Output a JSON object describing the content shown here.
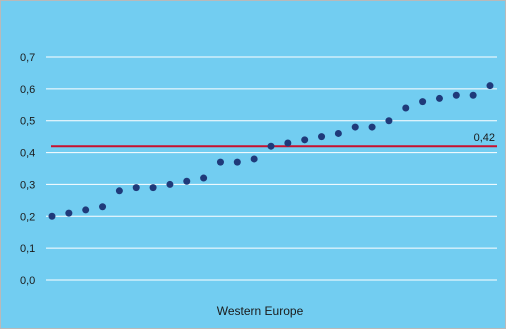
{
  "chart_data": {
    "type": "scatter",
    "title": "",
    "xlabel": "Western Europe",
    "ylabel": "",
    "ylim": [
      0,
      0.7
    ],
    "yticks": [
      0.0,
      0.1,
      0.2,
      0.3,
      0.4,
      0.5,
      0.6,
      0.7
    ],
    "ytick_labels": [
      "0,0",
      "0,1",
      "0,2",
      "0,3",
      "0,4",
      "0,5",
      "0,6",
      "0,7"
    ],
    "grid": true,
    "legend": "none",
    "series": [
      {
        "color": "#1f3a7a",
        "x": [
          1,
          2,
          3,
          4,
          5,
          6,
          7,
          8,
          9,
          10,
          11,
          12,
          13,
          14,
          15,
          16,
          17,
          18,
          19,
          20,
          21,
          22,
          23,
          24,
          25,
          26,
          27
        ],
        "values": [
          0.2,
          0.21,
          0.22,
          0.23,
          0.28,
          0.29,
          0.29,
          0.3,
          0.31,
          0.32,
          0.37,
          0.37,
          0.38,
          0.42,
          0.43,
          0.44,
          0.45,
          0.46,
          0.48,
          0.48,
          0.5,
          0.54,
          0.56,
          0.57,
          0.58,
          0.58,
          0.61
        ]
      }
    ],
    "reference_line": {
      "value": 0.42,
      "label": "0,42",
      "color": "#c8102e"
    },
    "colors": {
      "background": "#72cdf1",
      "grid": "#ffffff",
      "border": "#b9b9b9",
      "point": "#1f3a7a",
      "reference": "#c8102e"
    }
  }
}
